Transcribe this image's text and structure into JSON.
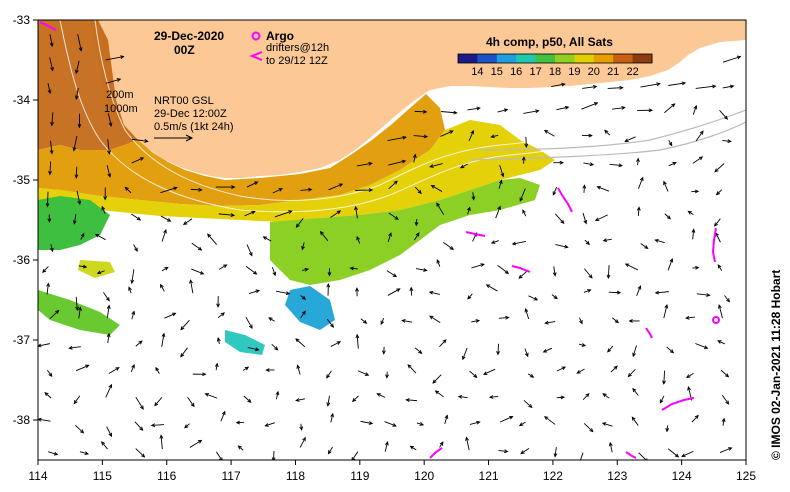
{
  "map": {
    "date": "29-Dec-2020",
    "time": "00Z",
    "argo_label": "Argo",
    "drifters_line1": "drifters@12h",
    "drifters_line2": "to 29/12 12Z",
    "depth_200": "200m",
    "depth_1000": "1000m",
    "model_line1": "NRT00 GSL",
    "model_line2": "29-Dec 12:00Z",
    "model_line3": "0.5m/s (1kt 24h)",
    "colorbar_title": "4h comp, p50, All Sats",
    "colorbar_ticks": [
      "14",
      "15",
      "16",
      "17",
      "18",
      "19",
      "20",
      "21",
      "22"
    ],
    "colorbar_colors": [
      "#1a1a8a",
      "#2050c8",
      "#1ea0e0",
      "#20c8b0",
      "#40c040",
      "#90d020",
      "#e0d000",
      "#e8a000",
      "#c86010",
      "#8c3c10"
    ],
    "credit": "© IMOS 02-Jan-2021 11:28 Hobart",
    "lon_ticks": [
      "114",
      "115",
      "116",
      "117",
      "118",
      "119",
      "120",
      "121",
      "122",
      "123",
      "124",
      "125"
    ],
    "lat_ticks": [
      "-33",
      "-34",
      "-35",
      "-36",
      "-37",
      "-38"
    ],
    "land_color": "#fbc896",
    "drifter_color": "#ff00ff"
  }
}
